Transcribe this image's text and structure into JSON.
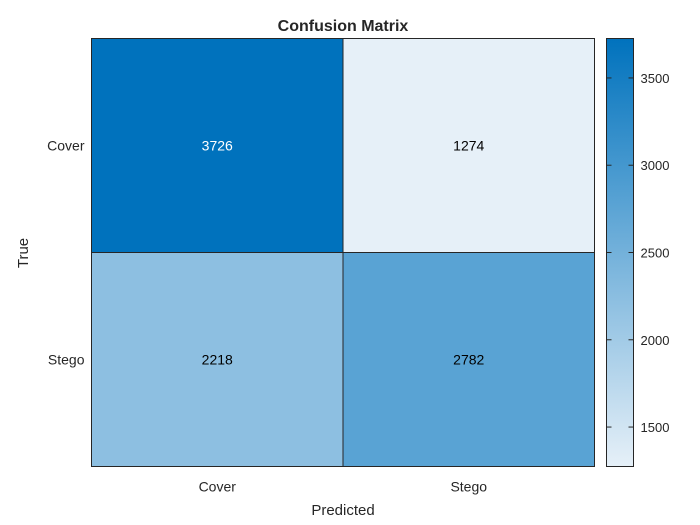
{
  "chart_data": {
    "type": "heatmap",
    "title": "Confusion Matrix",
    "xlabel": "Predicted",
    "ylabel": "True",
    "x_categories": [
      "Cover",
      "Stego"
    ],
    "y_categories": [
      "Cover",
      "Stego"
    ],
    "values": [
      [
        3726,
        1274
      ],
      [
        2218,
        2782
      ]
    ],
    "colorbar": {
      "min": 1274,
      "max": 3726,
      "ticks": [
        1500,
        2000,
        2500,
        3000,
        3500
      ],
      "color_low": "#e6f0f8",
      "color_high": "#0072bd"
    },
    "grid": false
  }
}
